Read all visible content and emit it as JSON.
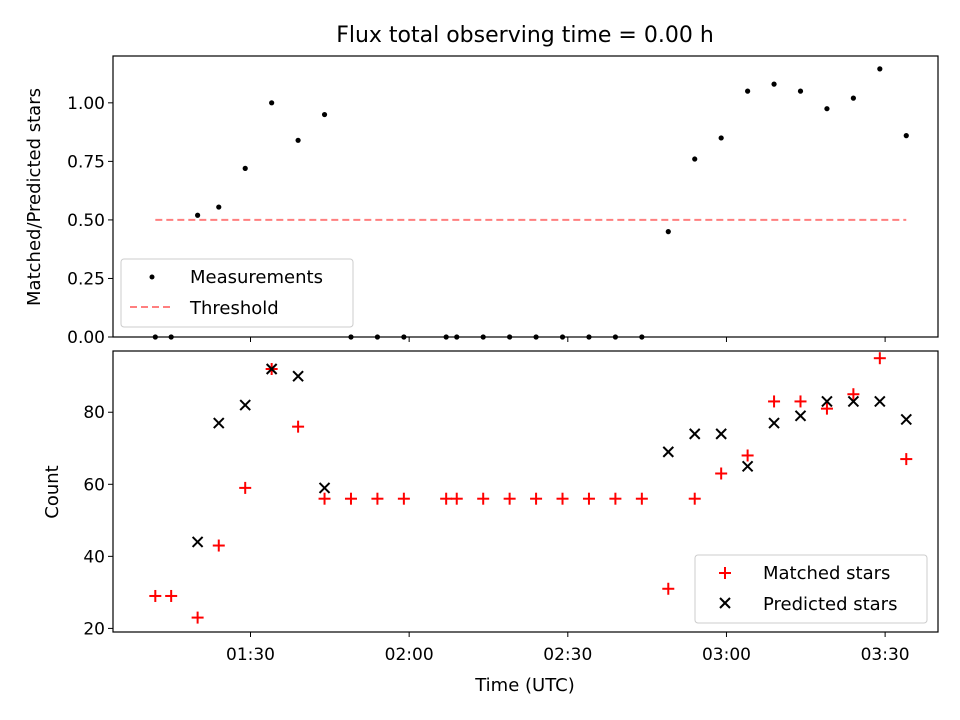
{
  "chart_data": [
    {
      "type": "scatter",
      "title": "Flux total observing time = 0.00 h",
      "ylabel": "Matched/Predicted stars",
      "xlabel": "",
      "ylim": [
        0,
        1.2
      ],
      "yticks": [
        0.0,
        0.25,
        0.5,
        0.75,
        1.0
      ],
      "ytick_labels": [
        "0.00",
        "0.25",
        "0.50",
        "0.75",
        "1.00"
      ],
      "legend_position": "lower-left",
      "series": [
        {
          "name": "Measurements",
          "marker": "dot",
          "color": "#000000",
          "x": [
            "01:12",
            "01:15",
            "01:20",
            "01:24",
            "01:29",
            "01:34",
            "01:39",
            "01:44",
            "01:49",
            "01:54",
            "01:59",
            "02:07",
            "02:09",
            "02:14",
            "02:19",
            "02:24",
            "02:29",
            "02:34",
            "02:39",
            "02:44",
            "02:49",
            "02:54",
            "02:59",
            "03:04",
            "03:09",
            "03:14",
            "03:19",
            "03:24",
            "03:29",
            "03:34"
          ],
          "y": [
            0.0,
            0.0,
            0.52,
            0.555,
            0.72,
            1.0,
            0.84,
            0.95,
            0.0,
            0.0,
            0.0,
            0.0,
            0.0,
            0.0,
            0.0,
            0.0,
            0.0,
            0.0,
            0.0,
            0.0,
            0.45,
            0.76,
            0.85,
            1.05,
            1.08,
            1.05,
            0.975,
            1.02,
            1.145,
            0.86
          ]
        },
        {
          "name": "Threshold",
          "style": "dashed",
          "color": "#ff7f7f",
          "x": [
            "01:12",
            "03:34"
          ],
          "y": [
            0.5,
            0.5
          ]
        }
      ]
    },
    {
      "type": "scatter",
      "xlabel": "Time (UTC)",
      "ylabel": "Count",
      "ylim": [
        19,
        97
      ],
      "yticks": [
        20,
        40,
        60,
        80
      ],
      "ytick_labels": [
        "20",
        "40",
        "60",
        "80"
      ],
      "xticks": [
        "01:30",
        "02:00",
        "02:30",
        "03:00",
        "03:30"
      ],
      "xlim": [
        "01:04",
        "03:40"
      ],
      "legend_position": "lower-right",
      "series": [
        {
          "name": "Matched stars",
          "marker": "plus",
          "color": "#ff0000",
          "x": [
            "01:12",
            "01:15",
            "01:20",
            "01:24",
            "01:29",
            "01:34",
            "01:39",
            "01:44",
            "01:49",
            "01:54",
            "01:59",
            "02:07",
            "02:09",
            "02:14",
            "02:19",
            "02:24",
            "02:29",
            "02:34",
            "02:39",
            "02:44",
            "02:49",
            "02:54",
            "02:59",
            "03:04",
            "03:09",
            "03:14",
            "03:19",
            "03:24",
            "03:29",
            "03:34"
          ],
          "y": [
            29,
            29,
            23,
            43,
            59,
            92,
            76,
            56,
            56,
            56,
            56,
            56,
            56,
            56,
            56,
            56,
            56,
            56,
            56,
            56,
            31,
            56,
            63,
            68,
            83,
            83,
            81,
            85,
            95,
            67
          ]
        },
        {
          "name": "Predicted stars",
          "marker": "x",
          "color": "#000000",
          "x": [
            "01:20",
            "01:24",
            "01:29",
            "01:34",
            "01:39",
            "01:44",
            "02:49",
            "02:54",
            "02:59",
            "03:04",
            "03:09",
            "03:14",
            "03:19",
            "03:24",
            "03:29",
            "03:34"
          ],
          "y": [
            44,
            77,
            82,
            92,
            90,
            59,
            69,
            74,
            74,
            65,
            77,
            79,
            83,
            83,
            83,
            78
          ]
        }
      ]
    }
  ]
}
